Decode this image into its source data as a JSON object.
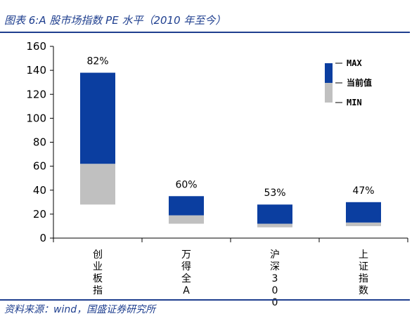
{
  "title": "图表 6:A 股市场指数 PE 水平（2010 年至今）",
  "source": "资料来源：wind，国盛证券研究所",
  "colors": {
    "max_fill": "#0b3ea0",
    "min_fill": "#c0c0c0",
    "rule": "#1f3f8f"
  },
  "chart_data": {
    "type": "bar",
    "stacked_range": true,
    "categories": [
      "创业板指",
      "万得全A",
      "沪深300",
      "上证指数"
    ],
    "series": [
      {
        "name": "MIN",
        "values": [
          28,
          12,
          9,
          10
        ]
      },
      {
        "name": "当前值",
        "values": [
          62,
          19,
          12,
          13
        ]
      },
      {
        "name": "MAX",
        "values": [
          138,
          35,
          28,
          30
        ]
      }
    ],
    "labels": [
      "82%",
      "60%",
      "53%",
      "47%"
    ],
    "legend": [
      "MAX",
      "当前值",
      "MIN"
    ],
    "legend_position": "top-right",
    "ylim": [
      0,
      160
    ],
    "yticks": [
      "0",
      "20",
      "40",
      "60",
      "80",
      "100",
      "120",
      "140",
      "160"
    ],
    "xlabel": "",
    "ylabel": ""
  }
}
